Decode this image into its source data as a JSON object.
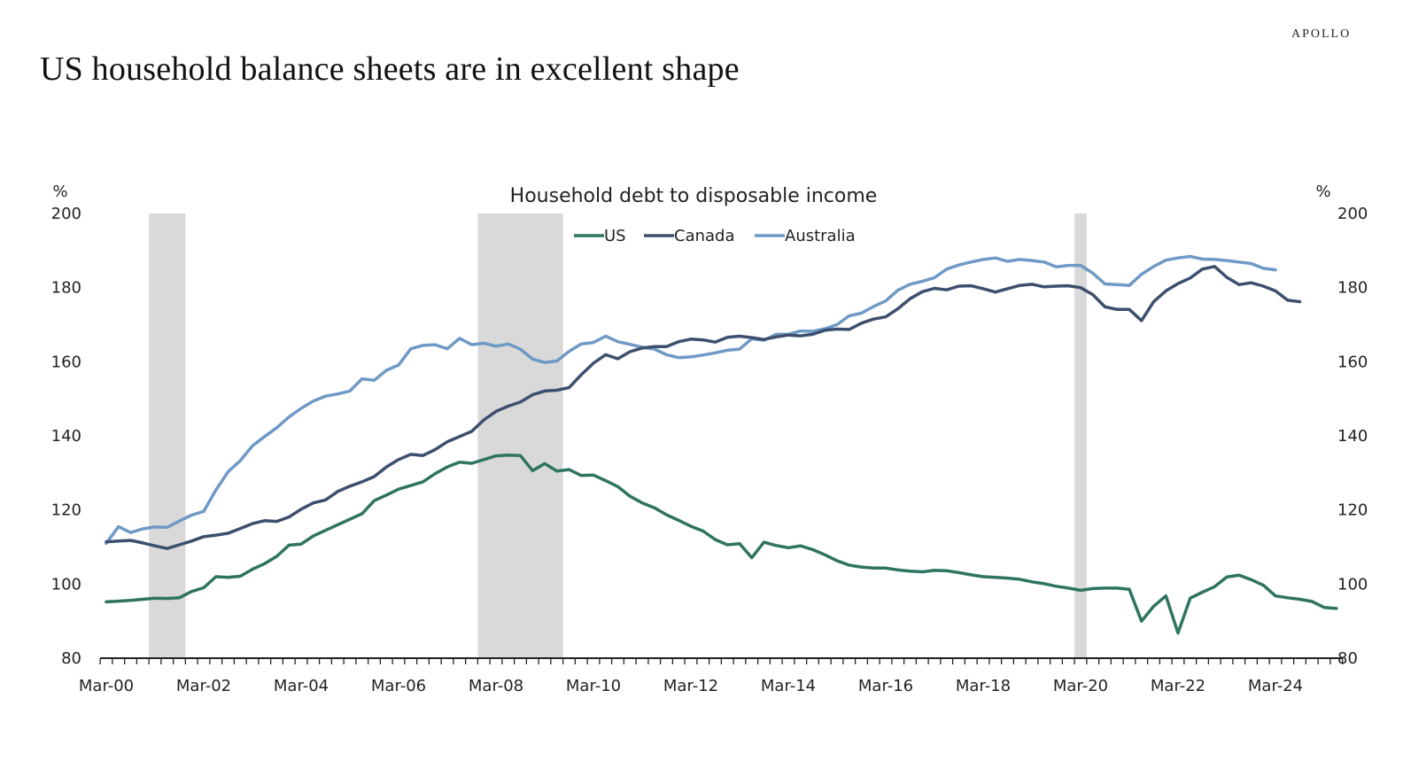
{
  "brand": "APOLLO",
  "title": "US household balance sheets are in excellent shape",
  "chart_data": {
    "type": "line",
    "title": "Household debt to disposable income",
    "ylabel_left": "%",
    "ylabel_right": "%",
    "xlabel": "",
    "ylim": [
      80,
      200
    ],
    "yticks": [
      80,
      100,
      120,
      140,
      160,
      180,
      200
    ],
    "x_start": "Mar-00",
    "x_frequency": "quarterly",
    "xtick_labels": [
      "Mar-00",
      "Mar-02",
      "Mar-04",
      "Mar-06",
      "Mar-08",
      "Mar-10",
      "Mar-12",
      "Mar-14",
      "Mar-16",
      "Mar-18",
      "Mar-20",
      "Mar-22",
      "Mar-24"
    ],
    "xtick_label_every_n_quarters": 8,
    "legend_position": "top-center",
    "grid": false,
    "recession_shading": [
      {
        "start_quarter_index": 3.5,
        "end_quarter_index": 6.5
      },
      {
        "start_quarter_index": 30.5,
        "end_quarter_index": 37.5
      },
      {
        "start_quarter_index": 79.5,
        "end_quarter_index": 80.5
      }
    ],
    "recession_color": "#d9d9d9",
    "series": [
      {
        "name": "US",
        "color": "#2e7461",
        "values": [
          95.2,
          95.4,
          95.6,
          95.9,
          96.2,
          96.1,
          96.3,
          98.0,
          99.0,
          102.0,
          101.8,
          102.1,
          104.0,
          105.5,
          107.5,
          110.5,
          110.8,
          113.0,
          114.5,
          116.0,
          117.5,
          119.0,
          122.5,
          124.0,
          125.6,
          126.6,
          127.6,
          129.8,
          131.6,
          132.9,
          132.6,
          133.6,
          134.6,
          134.8,
          134.7,
          130.6,
          132.5,
          130.5,
          130.9,
          129.3,
          129.4,
          127.9,
          126.3,
          123.7,
          121.9,
          120.6,
          118.7,
          117.2,
          115.6,
          114.3,
          112.0,
          110.6,
          110.9,
          107.1,
          111.3,
          110.4,
          109.8,
          110.3,
          109.3,
          107.9,
          106.3,
          105.1,
          104.6,
          104.3,
          104.3,
          103.8,
          103.5,
          103.3,
          103.7,
          103.6,
          103.1,
          102.5,
          102.0,
          101.8,
          101.6,
          101.3,
          100.6,
          100.1,
          99.4,
          98.9,
          98.3,
          98.8,
          98.9,
          98.9,
          98.6,
          90.0,
          94.0,
          96.8,
          86.8,
          96.2,
          97.8,
          99.3,
          101.9,
          102.4,
          101.2,
          99.7,
          96.8,
          96.3,
          95.9,
          95.3,
          93.7,
          93.4
        ]
      },
      {
        "name": "Canada",
        "color": "#3d4f6e",
        "values": [
          111.4,
          111.6,
          111.8,
          111.1,
          110.3,
          109.6,
          110.6,
          111.6,
          112.8,
          113.2,
          113.7,
          115.0,
          116.3,
          117.1,
          116.9,
          118.1,
          120.2,
          121.9,
          122.7,
          125.0,
          126.4,
          127.6,
          129.0,
          131.6,
          133.6,
          135.0,
          134.7,
          136.3,
          138.4,
          139.8,
          141.2,
          144.3,
          146.6,
          148.0,
          149.1,
          151.1,
          152.1,
          152.3,
          153.0,
          156.5,
          159.6,
          161.9,
          160.8,
          162.7,
          163.7,
          164.1,
          164.1,
          165.4,
          166.1,
          165.9,
          165.3,
          166.6,
          166.9,
          166.5,
          166.0,
          166.7,
          167.2,
          167.0,
          167.4,
          168.5,
          168.8,
          168.7,
          170.4,
          171.5,
          172.1,
          174.3,
          177.0,
          178.9,
          179.8,
          179.4,
          180.4,
          180.5,
          179.7,
          178.8,
          179.7,
          180.6,
          180.9,
          180.2,
          180.4,
          180.5,
          180.0,
          178.1,
          174.8,
          174.1,
          174.1,
          171.1,
          176.2,
          179.1,
          181.1,
          182.6,
          185.0,
          185.7,
          182.8,
          180.8,
          181.3,
          180.4,
          179.1,
          176.6,
          176.2
        ]
      },
      {
        "name": "Australia",
        "color": "#6f99c6",
        "values": [
          111.0,
          115.5,
          113.9,
          114.9,
          115.4,
          115.3,
          117.0,
          118.6,
          119.6,
          125.4,
          130.3,
          133.3,
          137.3,
          139.8,
          142.2,
          145.1,
          147.4,
          149.4,
          150.7,
          151.3,
          152.1,
          155.4,
          155.0,
          157.7,
          159.1,
          163.5,
          164.4,
          164.6,
          163.5,
          166.3,
          164.6,
          165.0,
          164.2,
          164.8,
          163.4,
          160.7,
          159.8,
          160.2,
          162.8,
          164.8,
          165.2,
          166.9,
          165.4,
          164.7,
          163.9,
          163.4,
          161.9,
          161.1,
          161.3,
          161.8,
          162.4,
          163.1,
          163.4,
          166.2,
          165.8,
          167.4,
          167.4,
          168.3,
          168.2,
          168.9,
          170.0,
          172.4,
          173.1,
          174.9,
          176.4,
          179.3,
          180.9,
          181.7,
          182.7,
          185.0,
          186.1,
          186.9,
          187.6,
          188.0,
          187.1,
          187.6,
          187.3,
          186.9,
          185.6,
          186.0,
          186.0,
          183.9,
          181.0,
          180.8,
          180.6,
          183.6,
          185.7,
          187.4,
          188.0,
          188.4,
          187.7,
          187.6,
          187.3,
          186.9,
          186.5,
          185.2,
          184.8
        ]
      }
    ]
  }
}
